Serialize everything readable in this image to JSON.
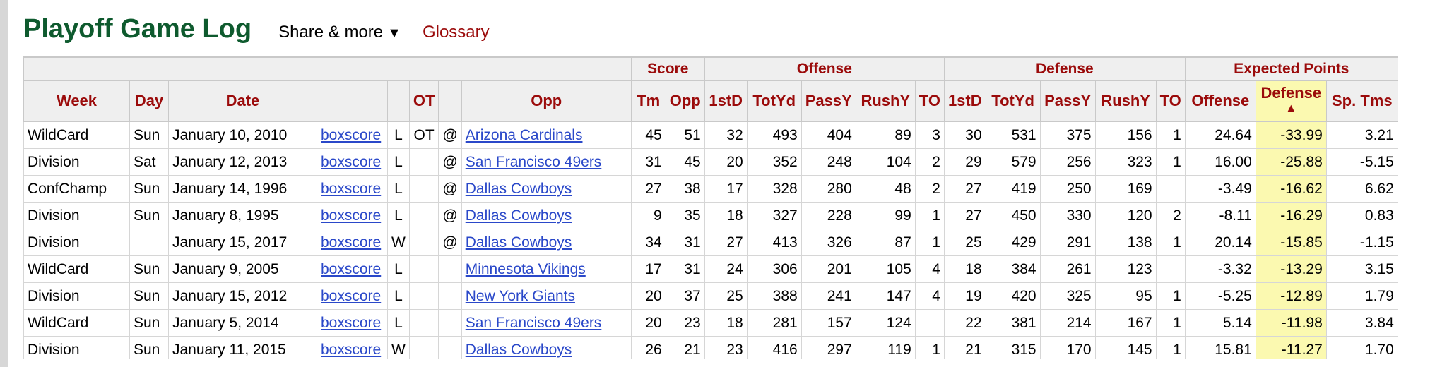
{
  "header": {
    "title": "Playoff Game Log",
    "share_label": "Share & more",
    "share_caret": "▼",
    "glossary_label": "Glossary"
  },
  "table": {
    "group_headers": {
      "score": "Score",
      "offense": "Offense",
      "defense": "Defense",
      "expected_points": "Expected Points"
    },
    "columns": [
      "Week",
      "Day",
      "Date",
      "",
      "",
      "OT",
      "",
      "Opp",
      "Tm",
      "Opp",
      "1stD",
      "TotYd",
      "PassY",
      "RushY",
      "TO",
      "1stD",
      "TotYd",
      "PassY",
      "RushY",
      "TO",
      "Offense",
      "Defense",
      "Sp. Tms"
    ],
    "sort_indicator": "▲",
    "rows": [
      {
        "week": "WildCard",
        "day": "Sun",
        "date": "January 10, 2010",
        "boxscore": "boxscore",
        "result": "L",
        "ot": "OT",
        "at": "@",
        "opp": "Arizona Cardinals",
        "tm": "45",
        "opp_pts": "51",
        "off_1std": "32",
        "off_totyd": "493",
        "off_passy": "404",
        "off_rushy": "89",
        "off_to": "3",
        "def_1std": "30",
        "def_totyd": "531",
        "def_passy": "375",
        "def_rushy": "156",
        "def_to": "1",
        "ep_off": "24.64",
        "ep_def": "-33.99",
        "ep_sp": "3.21"
      },
      {
        "week": "Division",
        "day": "Sat",
        "date": "January 12, 2013",
        "boxscore": "boxscore",
        "result": "L",
        "ot": "",
        "at": "@",
        "opp": "San Francisco 49ers",
        "tm": "31",
        "opp_pts": "45",
        "off_1std": "20",
        "off_totyd": "352",
        "off_passy": "248",
        "off_rushy": "104",
        "off_to": "2",
        "def_1std": "29",
        "def_totyd": "579",
        "def_passy": "256",
        "def_rushy": "323",
        "def_to": "1",
        "ep_off": "16.00",
        "ep_def": "-25.88",
        "ep_sp": "-5.15"
      },
      {
        "week": "ConfChamp",
        "day": "Sun",
        "date": "January 14, 1996",
        "boxscore": "boxscore",
        "result": "L",
        "ot": "",
        "at": "@",
        "opp": "Dallas Cowboys",
        "tm": "27",
        "opp_pts": "38",
        "off_1std": "17",
        "off_totyd": "328",
        "off_passy": "280",
        "off_rushy": "48",
        "off_to": "2",
        "def_1std": "27",
        "def_totyd": "419",
        "def_passy": "250",
        "def_rushy": "169",
        "def_to": "",
        "ep_off": "-3.49",
        "ep_def": "-16.62",
        "ep_sp": "6.62"
      },
      {
        "week": "Division",
        "day": "Sun",
        "date": "January 8, 1995",
        "boxscore": "boxscore",
        "result": "L",
        "ot": "",
        "at": "@",
        "opp": "Dallas Cowboys",
        "tm": "9",
        "opp_pts": "35",
        "off_1std": "18",
        "off_totyd": "327",
        "off_passy": "228",
        "off_rushy": "99",
        "off_to": "1",
        "def_1std": "27",
        "def_totyd": "450",
        "def_passy": "330",
        "def_rushy": "120",
        "def_to": "2",
        "ep_off": "-8.11",
        "ep_def": "-16.29",
        "ep_sp": "0.83"
      },
      {
        "week": "Division",
        "day": "",
        "date": "January 15, 2017",
        "boxscore": "boxscore",
        "result": "W",
        "ot": "",
        "at": "@",
        "opp": "Dallas Cowboys",
        "tm": "34",
        "opp_pts": "31",
        "off_1std": "27",
        "off_totyd": "413",
        "off_passy": "326",
        "off_rushy": "87",
        "off_to": "1",
        "def_1std": "25",
        "def_totyd": "429",
        "def_passy": "291",
        "def_rushy": "138",
        "def_to": "1",
        "ep_off": "20.14",
        "ep_def": "-15.85",
        "ep_sp": "-1.15"
      },
      {
        "week": "WildCard",
        "day": "Sun",
        "date": "January 9, 2005",
        "boxscore": "boxscore",
        "result": "L",
        "ot": "",
        "at": "",
        "opp": "Minnesota Vikings",
        "tm": "17",
        "opp_pts": "31",
        "off_1std": "24",
        "off_totyd": "306",
        "off_passy": "201",
        "off_rushy": "105",
        "off_to": "4",
        "def_1std": "18",
        "def_totyd": "384",
        "def_passy": "261",
        "def_rushy": "123",
        "def_to": "",
        "ep_off": "-3.32",
        "ep_def": "-13.29",
        "ep_sp": "3.15"
      },
      {
        "week": "Division",
        "day": "Sun",
        "date": "January 15, 2012",
        "boxscore": "boxscore",
        "result": "L",
        "ot": "",
        "at": "",
        "opp": "New York Giants",
        "tm": "20",
        "opp_pts": "37",
        "off_1std": "25",
        "off_totyd": "388",
        "off_passy": "241",
        "off_rushy": "147",
        "off_to": "4",
        "def_1std": "19",
        "def_totyd": "420",
        "def_passy": "325",
        "def_rushy": "95",
        "def_to": "1",
        "ep_off": "-5.25",
        "ep_def": "-12.89",
        "ep_sp": "1.79"
      },
      {
        "week": "WildCard",
        "day": "Sun",
        "date": "January 5, 2014",
        "boxscore": "boxscore",
        "result": "L",
        "ot": "",
        "at": "",
        "opp": "San Francisco 49ers",
        "tm": "20",
        "opp_pts": "23",
        "off_1std": "18",
        "off_totyd": "281",
        "off_passy": "157",
        "off_rushy": "124",
        "off_to": "",
        "def_1std": "22",
        "def_totyd": "381",
        "def_passy": "214",
        "def_rushy": "167",
        "def_to": "1",
        "ep_off": "5.14",
        "ep_def": "-11.98",
        "ep_sp": "3.84"
      },
      {
        "week": "Division",
        "day": "Sun",
        "date": "January 11, 2015",
        "boxscore": "boxscore",
        "result": "W",
        "ot": "",
        "at": "",
        "opp": "Dallas Cowboys",
        "tm": "26",
        "opp_pts": "21",
        "off_1std": "23",
        "off_totyd": "416",
        "off_passy": "297",
        "off_rushy": "119",
        "off_to": "1",
        "def_1std": "21",
        "def_totyd": "315",
        "def_passy": "170",
        "def_rushy": "145",
        "def_to": "1",
        "ep_off": "15.81",
        "ep_def": "-11.27",
        "ep_sp": "1.70"
      }
    ]
  }
}
